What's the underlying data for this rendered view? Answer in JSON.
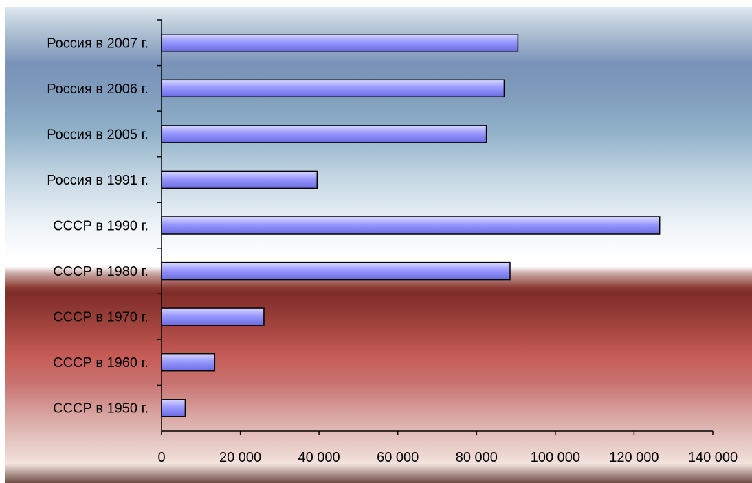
{
  "colors": {
    "bar_fill_top": "#d8d8ff",
    "bar_fill_mid": "#9999ff",
    "bar_fill_bottom": "#6a6ae0",
    "bar_stroke": "#000000",
    "axis": "#000000"
  },
  "chart_data": {
    "type": "bar",
    "orientation": "horizontal",
    "categories": [
      "Россия в 2007 г.",
      "Россия в 2006 г.",
      "Россия в 2005 г.",
      "Россия в 1991 г.",
      "СССР в 1990 г.",
      "СССР в 1980 г.",
      "СССР в 1970 г.",
      "СССР в 1960 г.",
      "СССР в 1950 г."
    ],
    "values": [
      90500,
      87000,
      82500,
      39500,
      126500,
      88500,
      26000,
      13500,
      6000
    ],
    "xlim": [
      0,
      140000
    ],
    "x_ticks": [
      0,
      20000,
      40000,
      60000,
      80000,
      100000,
      120000,
      140000
    ],
    "x_tick_labels": [
      "0",
      "20 000",
      "40 000",
      "60 000",
      "80 000",
      "100 000",
      "120 000",
      "140 000"
    ],
    "title": "",
    "xlabel": "",
    "ylabel": "",
    "legend": "none",
    "grid": false
  }
}
